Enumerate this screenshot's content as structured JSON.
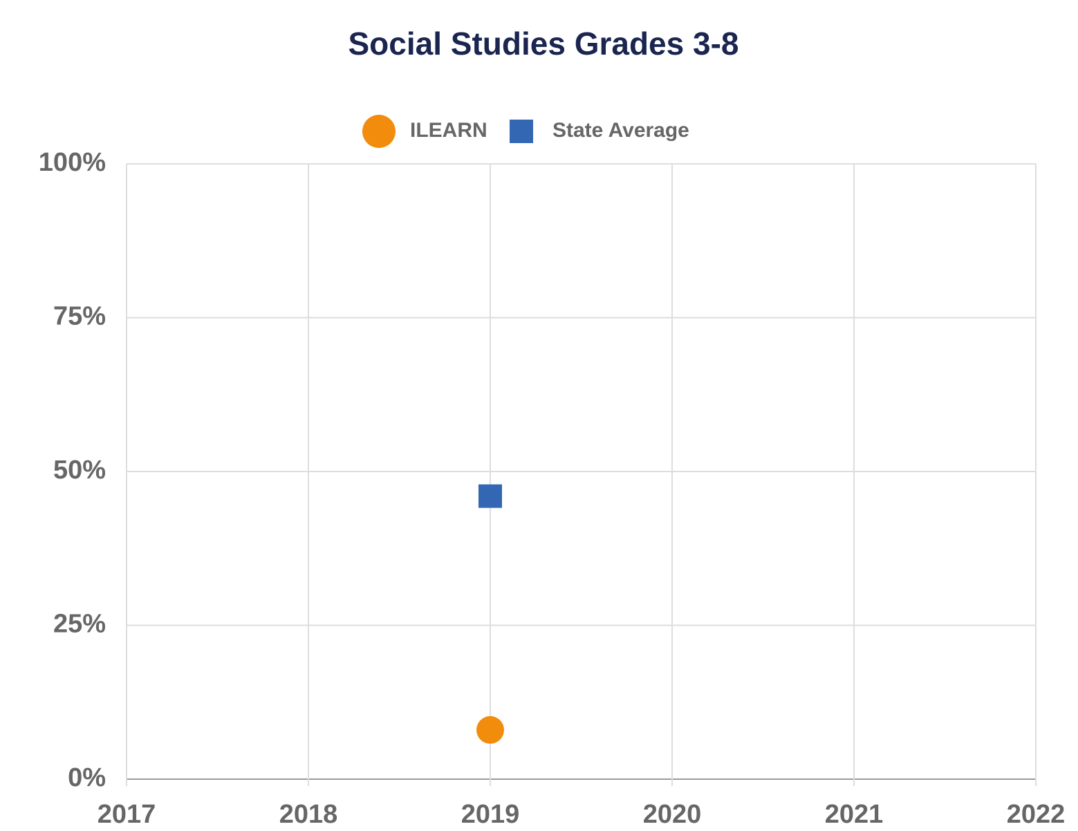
{
  "chart_data": {
    "type": "scatter",
    "title": "Social Studies Grades 3-8",
    "x": [
      2019
    ],
    "series": [
      {
        "name": "ILEARN",
        "color": "#f28c0c",
        "marker": "circle",
        "values": [
          8
        ]
      },
      {
        "name": "State Average",
        "color": "#3366b3",
        "marker": "square",
        "values": [
          46
        ]
      }
    ],
    "xlim": [
      2017,
      2022
    ],
    "xticks": [
      2017,
      2018,
      2019,
      2020,
      2021,
      2022
    ],
    "ylim": [
      0,
      100
    ],
    "yticks": [
      {
        "value": 0,
        "label": "0%"
      },
      {
        "value": 25,
        "label": "25%"
      },
      {
        "value": 50,
        "label": "50%"
      },
      {
        "value": 75,
        "label": "75%"
      },
      {
        "value": 100,
        "label": "100%"
      }
    ],
    "grid": true,
    "legend": "top"
  }
}
